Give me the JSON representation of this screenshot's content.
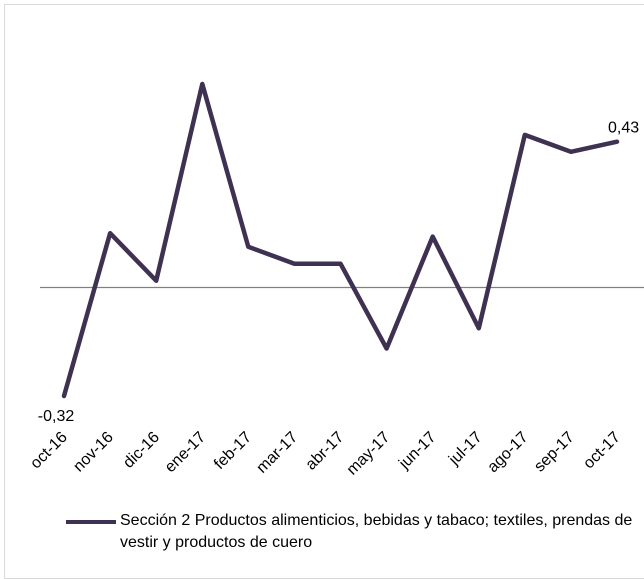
{
  "chart_data": {
    "type": "line",
    "title": "",
    "xlabel": "",
    "ylabel": "",
    "categories": [
      "oct-16",
      "nov-16",
      "dic-16",
      "ene-17",
      "feb-17",
      "mar-17",
      "abr-17",
      "may-17",
      "jun-17",
      "jul-17",
      "ago-17",
      "sep-17",
      "oct-17"
    ],
    "series": [
      {
        "name": "Sección 2 Productos alimenticios, bebidas y tabaco; textiles, prendas de vestir y productos de cuero",
        "values": [
          -0.32,
          0.16,
          0.02,
          0.6,
          0.12,
          0.07,
          0.07,
          -0.18,
          0.15,
          -0.12,
          0.45,
          0.4,
          0.43
        ],
        "color": "#3f3151"
      }
    ],
    "data_labels": [
      {
        "index": 0,
        "text": "-0,32"
      },
      {
        "index": 12,
        "text": "0,43"
      }
    ],
    "ylim": [
      -0.32,
      0.6
    ],
    "axis_line_at": 0,
    "grid": false,
    "legend_position": "bottom",
    "axis_color": "#808080"
  }
}
